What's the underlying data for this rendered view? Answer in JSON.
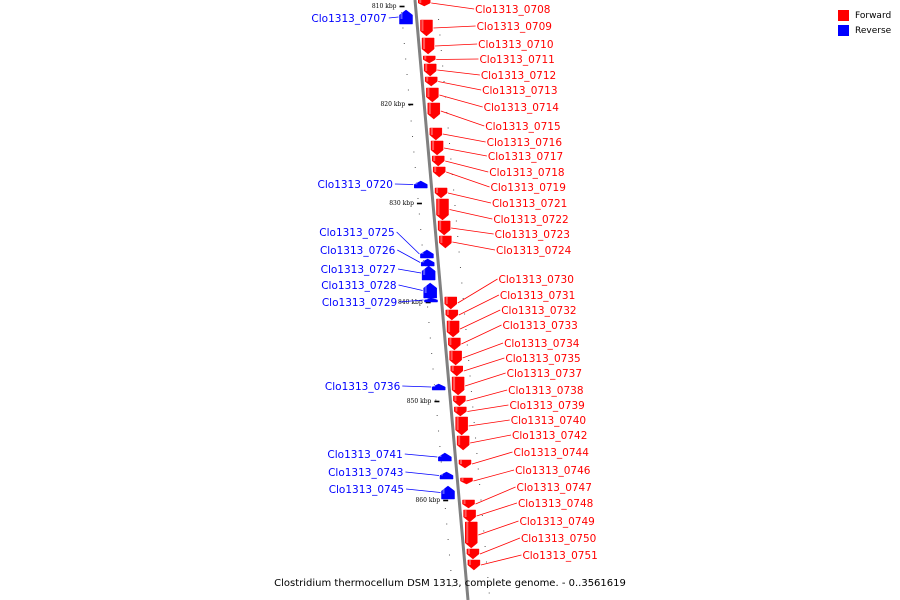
{
  "colors": {
    "forward": "#ff0000",
    "reverse": "#0000ff",
    "backbone": "#808080"
  },
  "legend": [
    {
      "label": "Forward",
      "strand": "forward"
    },
    {
      "label": "Reverse",
      "strand": "reverse"
    }
  ],
  "caption": "Clostridium thermocellum DSM 1313, complete genome. - 0..3561619",
  "ticks": [
    {
      "label": "810 kbp"
    },
    {
      "label": "820 kbp"
    },
    {
      "label": "830 kbp"
    },
    {
      "label": "840 kbp"
    },
    {
      "label": "850 kbp"
    },
    {
      "label": "860 kbp"
    }
  ],
  "genes": [
    {
      "name": "Clo1313_0707",
      "strand": "reverse"
    },
    {
      "name": "Clo1313_0708",
      "strand": "forward"
    },
    {
      "name": "Clo1313_0709",
      "strand": "forward"
    },
    {
      "name": "Clo1313_0710",
      "strand": "forward"
    },
    {
      "name": "Clo1313_0711",
      "strand": "forward"
    },
    {
      "name": "Clo1313_0712",
      "strand": "forward"
    },
    {
      "name": "Clo1313_0713",
      "strand": "forward"
    },
    {
      "name": "Clo1313_0714",
      "strand": "forward"
    },
    {
      "name": "Clo1313_0715",
      "strand": "forward"
    },
    {
      "name": "Clo1313_0716",
      "strand": "forward"
    },
    {
      "name": "Clo1313_0717",
      "strand": "forward"
    },
    {
      "name": "Clo1313_0718",
      "strand": "forward"
    },
    {
      "name": "Clo1313_0719",
      "strand": "forward"
    },
    {
      "name": "Clo1313_0720",
      "strand": "reverse"
    },
    {
      "name": "Clo1313_0721",
      "strand": "forward"
    },
    {
      "name": "Clo1313_0722",
      "strand": "forward"
    },
    {
      "name": "Clo1313_0723",
      "strand": "forward"
    },
    {
      "name": "Clo1313_0724",
      "strand": "forward"
    },
    {
      "name": "Clo1313_0725",
      "strand": "reverse"
    },
    {
      "name": "Clo1313_0726",
      "strand": "reverse"
    },
    {
      "name": "Clo1313_0727",
      "strand": "reverse"
    },
    {
      "name": "Clo1313_0728",
      "strand": "reverse"
    },
    {
      "name": "Clo1313_0729",
      "strand": "reverse"
    },
    {
      "name": "Clo1313_0730",
      "strand": "forward"
    },
    {
      "name": "Clo1313_0731",
      "strand": "forward"
    },
    {
      "name": "Clo1313_0732",
      "strand": "forward"
    },
    {
      "name": "Clo1313_0733",
      "strand": "forward"
    },
    {
      "name": "Clo1313_0734",
      "strand": "forward"
    },
    {
      "name": "Clo1313_0735",
      "strand": "forward"
    },
    {
      "name": "Clo1313_0736",
      "strand": "reverse"
    },
    {
      "name": "Clo1313_0737",
      "strand": "forward"
    },
    {
      "name": "Clo1313_0738",
      "strand": "forward"
    },
    {
      "name": "Clo1313_0739",
      "strand": "forward"
    },
    {
      "name": "Clo1313_0740",
      "strand": "forward"
    },
    {
      "name": "Clo1313_0741",
      "strand": "reverse"
    },
    {
      "name": "Clo1313_0742",
      "strand": "forward"
    },
    {
      "name": "Clo1313_0743",
      "strand": "reverse"
    },
    {
      "name": "Clo1313_0744",
      "strand": "forward"
    },
    {
      "name": "Clo1313_0745",
      "strand": "reverse"
    },
    {
      "name": "Clo1313_0746",
      "strand": "forward"
    },
    {
      "name": "Clo1313_0747",
      "strand": "forward"
    },
    {
      "name": "Clo1313_0748",
      "strand": "forward"
    },
    {
      "name": "Clo1313_0749",
      "strand": "forward"
    },
    {
      "name": "Clo1313_0750",
      "strand": "forward"
    },
    {
      "name": "Clo1313_0751",
      "strand": "forward"
    }
  ]
}
